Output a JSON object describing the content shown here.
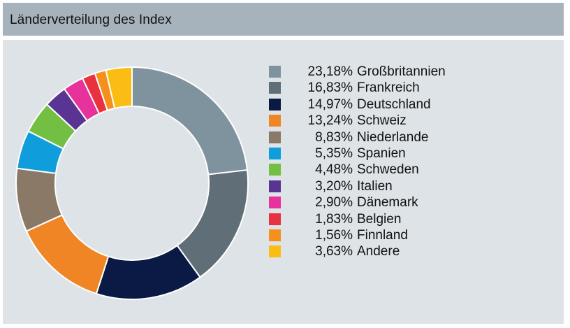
{
  "header": {
    "title": "Länderverteilung des Index"
  },
  "chart_data": {
    "type": "pie",
    "variant": "donut",
    "title": "Länderverteilung des Index",
    "legend_position": "right",
    "slices": [
      {
        "label": "Großbritannien",
        "value": 23.18,
        "display": "23,18%",
        "color": "#7f939f"
      },
      {
        "label": "Frankreich",
        "value": 16.83,
        "display": "16,83%",
        "color": "#5f6e77"
      },
      {
        "label": "Deutschland",
        "value": 14.97,
        "display": "14,97%",
        "color": "#0a1a44"
      },
      {
        "label": "Schweiz",
        "value": 13.24,
        "display": "13,24%",
        "color": "#f08526"
      },
      {
        "label": "Niederlande",
        "value": 8.83,
        "display": "8,83%",
        "color": "#8a7967"
      },
      {
        "label": "Spanien",
        "value": 5.35,
        "display": "5,35%",
        "color": "#0f9ddc"
      },
      {
        "label": "Schweden",
        "value": 4.48,
        "display": "4,48%",
        "color": "#73bf44"
      },
      {
        "label": "Italien",
        "value": 3.2,
        "display": "3,20%",
        "color": "#5a3492"
      },
      {
        "label": "Dänemark",
        "value": 2.9,
        "display": "2,90%",
        "color": "#e6329a"
      },
      {
        "label": "Belgien",
        "value": 1.83,
        "display": "1,83%",
        "color": "#e8323f"
      },
      {
        "label": "Finnland",
        "value": 1.56,
        "display": "1,56%",
        "color": "#f5901e"
      },
      {
        "label": "Andere",
        "value": 3.63,
        "display": "3,63%",
        "color": "#fbbd14"
      }
    ]
  }
}
